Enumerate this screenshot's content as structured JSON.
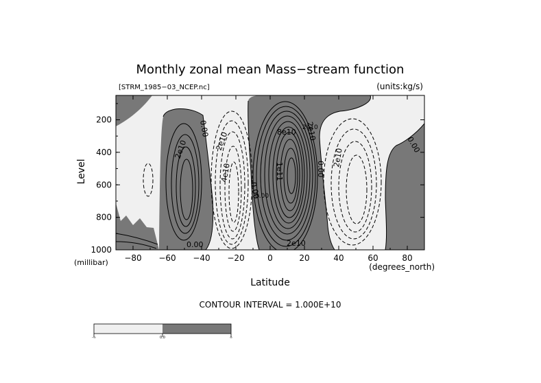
{
  "chart_data": {
    "type": "contour",
    "title": "Monthly zonal mean Mass−stream function",
    "source_label": "[STRM_1985−03_NCEP.nc]",
    "units_label": "(units:kg/s)",
    "xlabel": "Latitude",
    "x_unit_label": "(degrees_north)",
    "ylabel": "Level",
    "y_unit_label": "(millibar)",
    "xlim": [
      -90,
      90
    ],
    "ylim": [
      1000,
      50
    ],
    "x_ticks": [
      -80,
      -60,
      -40,
      -20,
      0,
      20,
      40,
      60,
      80
    ],
    "y_ticks": [
      200,
      400,
      600,
      800,
      1000
    ],
    "contour_interval_label": "CONTOUR INTERVAL = 1.000E+10",
    "contour_labels": [
      "0.00",
      "2e10",
      "0.00",
      "2e10",
      "4e10",
      "0.00",
      "8e10",
      "2e10",
      "1e11",
      "2e10",
      "0.00",
      "2e10",
      "0.00",
      "2e10",
      "0.00"
    ],
    "shading": {
      "negative_color": "#f0f0f0",
      "positive_color": "#787878"
    },
    "colorbar": {
      "labels": [
        "-∞",
        "0.0",
        "∞"
      ],
      "colors": [
        "#f0f0f0",
        "#787878"
      ]
    }
  }
}
